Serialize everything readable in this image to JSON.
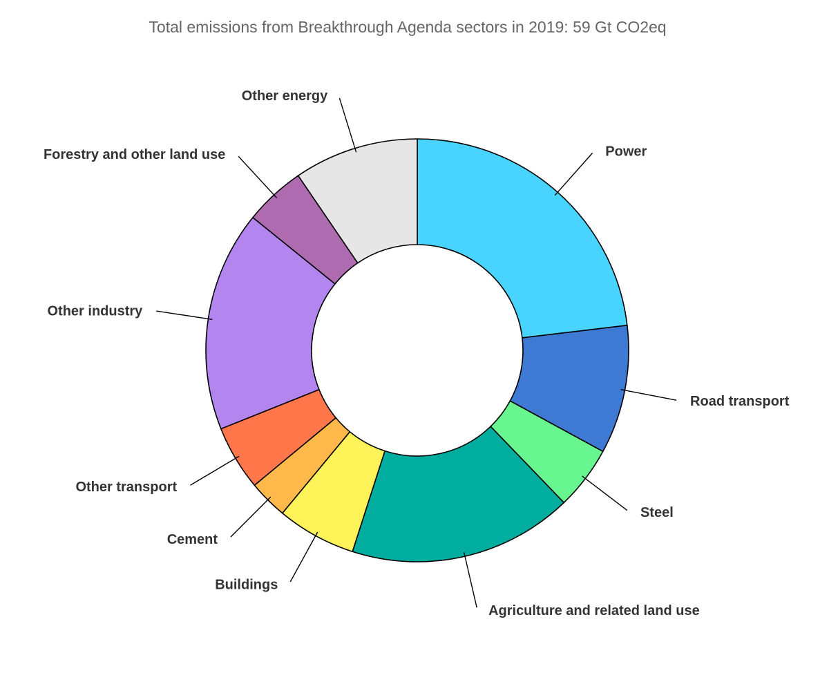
{
  "chart_data": {
    "type": "pie",
    "title": "Total emissions from Breakthrough Agenda sectors in 2019: 59 Gt CO2eq",
    "categories": [
      "Power",
      "Road transport",
      "Steel",
      "Agriculture and related land use",
      "Buildings",
      "Cement",
      "Other transport",
      "Other industry",
      "Forestry and other land use",
      "Other energy"
    ],
    "values": [
      23.3,
      9.9,
      4.9,
      17.3,
      6.1,
      3.0,
      5.0,
      17.0,
      4.7,
      9.6
    ],
    "colors": [
      "#48d4fe",
      "#3e7ad4",
      "#68f690",
      "#00ad9f",
      "#fff35a",
      "#ffb94a",
      "#ff774a",
      "#b385ef",
      "#ae6bb0",
      "#e6e6e6"
    ],
    "hole": true,
    "legend": "none",
    "labels_outside": true
  }
}
